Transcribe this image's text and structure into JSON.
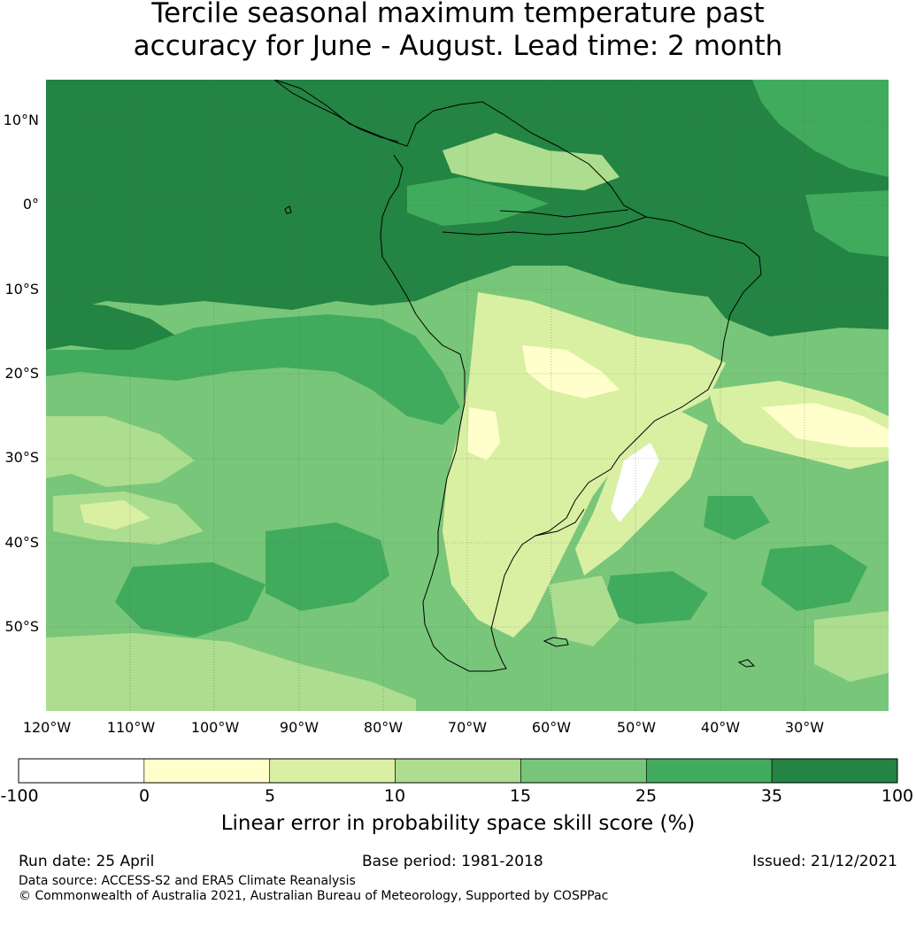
{
  "title": {
    "line1": "Tercile seasonal maximum temperature past",
    "line2": "accuracy for June - August. Lead time: 2 month"
  },
  "map": {
    "lat_labels": [
      "10°N",
      "0°",
      "10°S",
      "20°S",
      "30°S",
      "40°S",
      "50°S"
    ],
    "lon_labels": [
      "120°W",
      "110°W",
      "100°W",
      "90°W",
      "80°W",
      "70°W",
      "60°W",
      "50°W",
      "40°W",
      "30°W"
    ],
    "extent": {
      "lon": [
        -120,
        -20
      ],
      "lat": [
        -60,
        15
      ]
    }
  },
  "colorbar": {
    "ticks": [
      "-100",
      "0",
      "5",
      "10",
      "15",
      "25",
      "35",
      "100"
    ],
    "bins": [
      {
        "from": -100,
        "to": 0,
        "color": "#ffffff"
      },
      {
        "from": 0,
        "to": 5,
        "color": "#ffffcc"
      },
      {
        "from": 5,
        "to": 10,
        "color": "#d9f0a3"
      },
      {
        "from": 10,
        "to": 15,
        "color": "#addd8e"
      },
      {
        "from": 15,
        "to": 25,
        "color": "#78c679"
      },
      {
        "from": 25,
        "to": 35,
        "color": "#41ab5d"
      },
      {
        "from": 35,
        "to": 100,
        "color": "#238443"
      }
    ],
    "label": "Linear error in probability space skill score (%)"
  },
  "footer": {
    "run_date": "Run date: 25 April",
    "base_period": "Base period: 1981-2018",
    "issued": "Issued: 21/12/2021",
    "data_source": "Data source: ACCESS-S2 and ERA5 Climate Reanalysis",
    "copyright": "© Commonwealth of Australia 2021, Australian Bureau of Meteorology, Supported by COSPPac"
  }
}
